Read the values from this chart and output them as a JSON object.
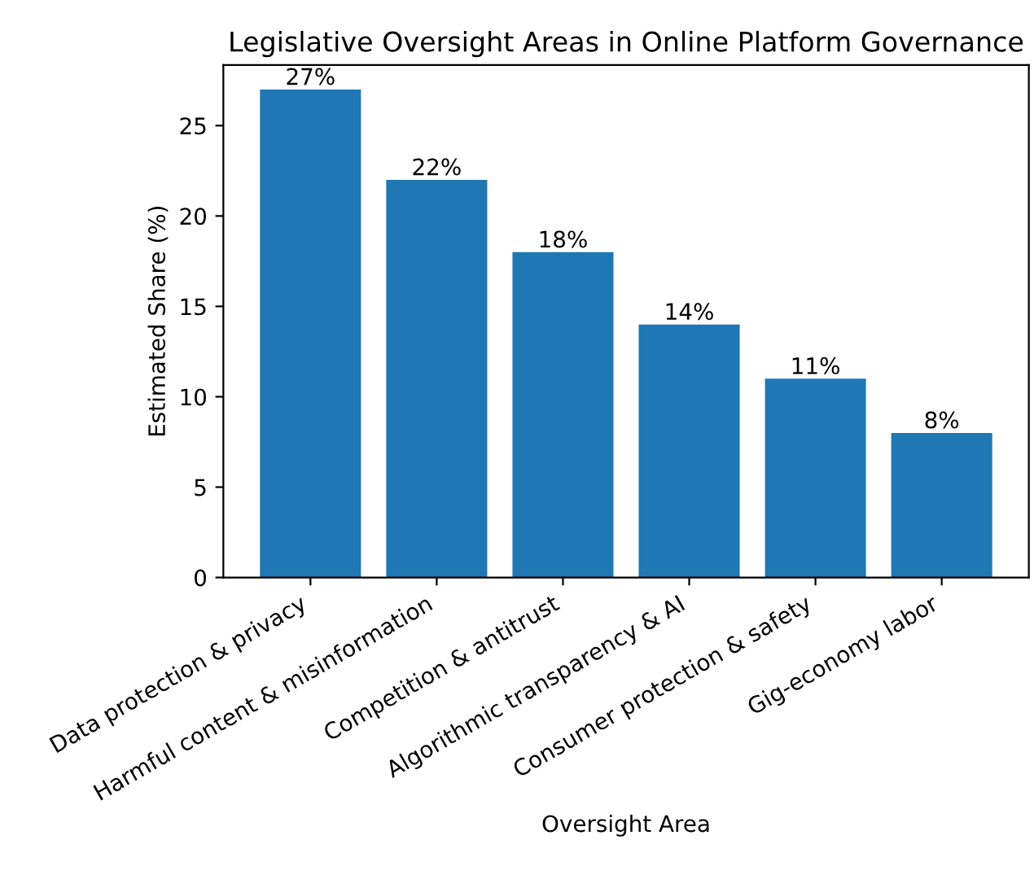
{
  "chart_data": {
    "type": "bar",
    "title": "Legislative Oversight Areas in Online Platform Governance",
    "xlabel": "Oversight Area",
    "ylabel": "Estimated Share (%)",
    "categories": [
      "Data protection & privacy",
      "Harmful content & misinformation",
      "Competition & antitrust",
      "Algorithmic transparency & AI",
      "Consumer protection & safety",
      "Gig-economy labor"
    ],
    "values": [
      27,
      22,
      18,
      14,
      11,
      8
    ],
    "value_labels": [
      "27%",
      "22%",
      "18%",
      "14%",
      "11%",
      "8%"
    ],
    "color": "#1f77b4",
    "ylim": [
      0,
      28.35
    ],
    "yticks": [
      0,
      5,
      10,
      15,
      20,
      25
    ],
    "grid": false
  }
}
